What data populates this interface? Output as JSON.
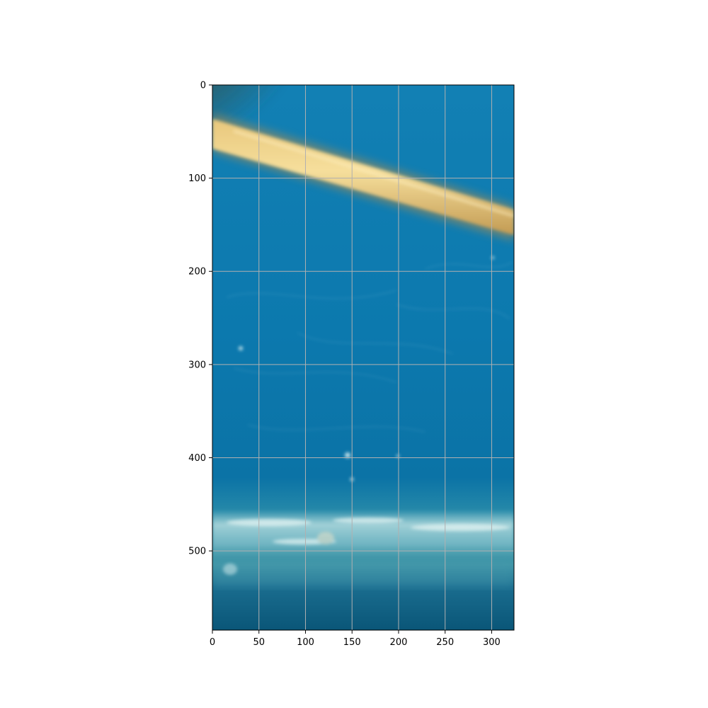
{
  "image": {
    "description_colors": {
      "water_top": "#0f7db3",
      "water_mid": "#0c78ae",
      "water_bottom": "#0a5f86",
      "stick": "#f1d38a",
      "stick_shadow": "#c59d55",
      "sediment": "#9fd1d8"
    }
  },
  "axes": {
    "x_extent": [
      0,
      324
    ],
    "y_extent": [
      0,
      585
    ],
    "y_inverted": true,
    "grid": true,
    "grid_color": "#b0b0b0",
    "x_ticks": [
      {
        "value": 0,
        "label": "0"
      },
      {
        "value": 50,
        "label": "50"
      },
      {
        "value": 100,
        "label": "100"
      },
      {
        "value": 150,
        "label": "150"
      },
      {
        "value": 200,
        "label": "200"
      },
      {
        "value": 250,
        "label": "250"
      },
      {
        "value": 300,
        "label": "300"
      }
    ],
    "y_ticks": [
      {
        "value": 0,
        "label": "0"
      },
      {
        "value": 100,
        "label": "100"
      },
      {
        "value": 200,
        "label": "200"
      },
      {
        "value": 300,
        "label": "300"
      },
      {
        "value": 400,
        "label": "400"
      },
      {
        "value": 500,
        "label": "500"
      }
    ]
  }
}
